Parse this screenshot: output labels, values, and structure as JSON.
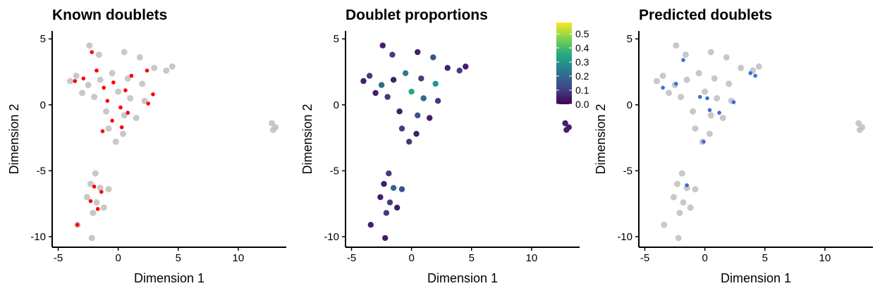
{
  "chart_data": [
    {
      "type": "scatter",
      "title": "Known doublets",
      "xlabel": "Dimension 1",
      "ylabel": "Dimension 2",
      "xlim": [
        -5.5,
        14
      ],
      "ylim": [
        -10.8,
        5.6
      ],
      "xticks": [
        "-5",
        "0",
        "5",
        "10"
      ],
      "yticks": [
        "5",
        "0",
        "-5",
        "-10"
      ],
      "grid": false,
      "colors": {
        "background": "#bebebe",
        "highlight": "#ff0000"
      },
      "series": [
        {
          "color": "#bebebe",
          "points": [
            [
              -2.4,
              4.5
            ],
            [
              -1.6,
              3.8
            ],
            [
              0.5,
              4.0
            ],
            [
              1.8,
              3.6
            ],
            [
              3.0,
              2.8
            ],
            [
              4.0,
              2.6
            ],
            [
              4.5,
              2.9
            ],
            [
              -4.0,
              1.8
            ],
            [
              -3.5,
              2.2
            ],
            [
              -2.5,
              1.5
            ],
            [
              -1.5,
              1.9
            ],
            [
              -0.5,
              2.4
            ],
            [
              0.8,
              2.0
            ],
            [
              2.0,
              1.6
            ],
            [
              -3.0,
              0.9
            ],
            [
              -2.0,
              0.6
            ],
            [
              0.0,
              1.0
            ],
            [
              1.0,
              0.5
            ],
            [
              2.2,
              0.3
            ],
            [
              -1.0,
              -0.5
            ],
            [
              0.5,
              -0.8
            ],
            [
              1.5,
              -1.0
            ],
            [
              -0.8,
              -1.8
            ],
            [
              0.4,
              -2.2
            ],
            [
              -0.2,
              -2.8
            ],
            [
              -1.9,
              -5.2
            ],
            [
              -2.3,
              -6.0
            ],
            [
              -1.5,
              -6.3
            ],
            [
              -0.8,
              -6.4
            ],
            [
              -2.6,
              -7.0
            ],
            [
              -1.8,
              -7.4
            ],
            [
              -1.2,
              -7.8
            ],
            [
              -2.1,
              -8.2
            ],
            [
              -3.4,
              -9.1
            ],
            [
              -2.2,
              -10.1
            ],
            [
              12.8,
              -1.4
            ],
            [
              13.1,
              -1.7
            ],
            [
              12.9,
              -1.9
            ]
          ]
        },
        {
          "color": "#ff0000",
          "points": [
            [
              -2.2,
              4.0
            ],
            [
              -1.8,
              2.6
            ],
            [
              -3.6,
              1.8
            ],
            [
              -2.9,
              2.0
            ],
            [
              -1.2,
              1.3
            ],
            [
              -0.4,
              1.7
            ],
            [
              0.6,
              1.1
            ],
            [
              1.1,
              2.2
            ],
            [
              2.4,
              2.6
            ],
            [
              2.9,
              0.8
            ],
            [
              -0.9,
              0.3
            ],
            [
              0.2,
              -0.2
            ],
            [
              0.8,
              -0.6
            ],
            [
              -0.5,
              -1.2
            ],
            [
              0.3,
              -1.7
            ],
            [
              -1.3,
              -2.0
            ],
            [
              2.5,
              0.1
            ],
            [
              -2.0,
              -6.2
            ],
            [
              -1.4,
              -6.6
            ],
            [
              -2.3,
              -7.3
            ],
            [
              -1.7,
              -7.9
            ],
            [
              -3.4,
              -9.1
            ]
          ]
        }
      ]
    },
    {
      "type": "scatter",
      "title": "Doublet proportions",
      "xlabel": "Dimension 1",
      "ylabel": "Dimension 2",
      "xlim": [
        -5.5,
        14
      ],
      "ylim": [
        -10.8,
        5.6
      ],
      "xticks": [
        "-5",
        "0",
        "5",
        "10"
      ],
      "yticks": [
        "5",
        "0",
        "-5",
        "-10"
      ],
      "grid": false,
      "colorbar": {
        "ticks": [
          "0.5",
          "0.4",
          "0.3",
          "0.2",
          "0.1",
          "0.0"
        ],
        "values": [
          0.5,
          0.4,
          0.3,
          0.2,
          0.1,
          0.0
        ],
        "range": [
          0.0,
          0.58
        ],
        "colors": [
          "#440154",
          "#414487",
          "#2a788e",
          "#22a884",
          "#7ad151",
          "#fde725"
        ]
      },
      "points": [
        [
          -2.4,
          4.5,
          0.05
        ],
        [
          -1.6,
          3.8,
          0.1
        ],
        [
          0.5,
          4.0,
          0.05
        ],
        [
          1.8,
          3.6,
          0.15
        ],
        [
          3.0,
          2.8,
          0.05
        ],
        [
          4.0,
          2.6,
          0.1
        ],
        [
          4.5,
          2.9,
          0.05
        ],
        [
          -4.0,
          1.8,
          0.05
        ],
        [
          -3.5,
          2.2,
          0.1
        ],
        [
          -2.5,
          1.5,
          0.2
        ],
        [
          -1.5,
          1.9,
          0.05
        ],
        [
          -0.5,
          2.4,
          0.25
        ],
        [
          0.8,
          2.0,
          0.1
        ],
        [
          2.0,
          1.6,
          0.3
        ],
        [
          -3.0,
          0.9,
          0.05
        ],
        [
          -2.0,
          0.6,
          0.1
        ],
        [
          0.0,
          1.0,
          0.35
        ],
        [
          1.0,
          0.5,
          0.2
        ],
        [
          2.2,
          0.3,
          0.1
        ],
        [
          -1.0,
          -0.5,
          0.05
        ],
        [
          0.5,
          -0.8,
          0.15
        ],
        [
          1.5,
          -1.0,
          0.05
        ],
        [
          -0.8,
          -1.8,
          0.1
        ],
        [
          0.4,
          -2.2,
          0.05
        ],
        [
          -0.2,
          -2.8,
          0.1
        ],
        [
          -1.9,
          -5.2,
          0.1
        ],
        [
          -2.3,
          -6.0,
          0.05
        ],
        [
          -1.5,
          -6.3,
          0.2
        ],
        [
          -0.8,
          -6.4,
          0.15
        ],
        [
          -2.6,
          -7.0,
          0.05
        ],
        [
          -1.8,
          -7.4,
          0.1
        ],
        [
          -1.2,
          -7.8,
          0.05
        ],
        [
          -2.1,
          -8.2,
          0.1
        ],
        [
          -3.4,
          -9.1,
          0.05
        ],
        [
          -2.2,
          -10.1,
          0.05
        ],
        [
          12.8,
          -1.4,
          0.05
        ],
        [
          13.1,
          -1.7,
          0.05
        ],
        [
          12.9,
          -1.9,
          0.05
        ]
      ]
    },
    {
      "type": "scatter",
      "title": "Predicted doublets",
      "xlabel": "Dimension 1",
      "ylabel": "Dimension 2",
      "xlim": [
        -5.5,
        14
      ],
      "ylim": [
        -10.8,
        5.6
      ],
      "xticks": [
        "-5",
        "0",
        "5",
        "10"
      ],
      "yticks": [
        "5",
        "0",
        "-5",
        "-10"
      ],
      "grid": false,
      "colors": {
        "background": "#bebebe",
        "highlight": "#4169e1"
      },
      "series": [
        {
          "color": "#bebebe",
          "points": [
            [
              -2.4,
              4.5
            ],
            [
              -1.6,
              3.8
            ],
            [
              0.5,
              4.0
            ],
            [
              1.8,
              3.6
            ],
            [
              3.0,
              2.8
            ],
            [
              4.0,
              2.6
            ],
            [
              4.5,
              2.9
            ],
            [
              -4.0,
              1.8
            ],
            [
              -3.5,
              2.2
            ],
            [
              -2.5,
              1.5
            ],
            [
              -1.5,
              1.9
            ],
            [
              -0.5,
              2.4
            ],
            [
              0.8,
              2.0
            ],
            [
              2.0,
              1.6
            ],
            [
              -3.0,
              0.9
            ],
            [
              -2.0,
              0.6
            ],
            [
              0.0,
              1.0
            ],
            [
              1.0,
              0.5
            ],
            [
              2.2,
              0.3
            ],
            [
              -1.0,
              -0.5
            ],
            [
              0.5,
              -0.8
            ],
            [
              1.5,
              -1.0
            ],
            [
              -0.8,
              -1.8
            ],
            [
              0.4,
              -2.2
            ],
            [
              -0.2,
              -2.8
            ],
            [
              -1.9,
              -5.2
            ],
            [
              -2.3,
              -6.0
            ],
            [
              -1.5,
              -6.3
            ],
            [
              -0.8,
              -6.4
            ],
            [
              -2.6,
              -7.0
            ],
            [
              -1.8,
              -7.4
            ],
            [
              -1.2,
              -7.8
            ],
            [
              -2.1,
              -8.2
            ],
            [
              -3.4,
              -9.1
            ],
            [
              -2.2,
              -10.1
            ],
            [
              12.8,
              -1.4
            ],
            [
              13.1,
              -1.7
            ],
            [
              12.9,
              -1.9
            ]
          ]
        },
        {
          "color": "#4169e1",
          "points": [
            [
              -1.8,
              3.4
            ],
            [
              -2.4,
              1.6
            ],
            [
              -3.5,
              1.3
            ],
            [
              -0.4,
              0.6
            ],
            [
              0.2,
              0.5
            ],
            [
              0.4,
              -0.4
            ],
            [
              1.2,
              -0.6
            ],
            [
              2.4,
              0.2
            ],
            [
              4.2,
              2.2
            ],
            [
              3.8,
              2.4
            ],
            [
              -0.1,
              -2.8
            ],
            [
              -1.5,
              -6.1
            ]
          ]
        }
      ]
    }
  ]
}
